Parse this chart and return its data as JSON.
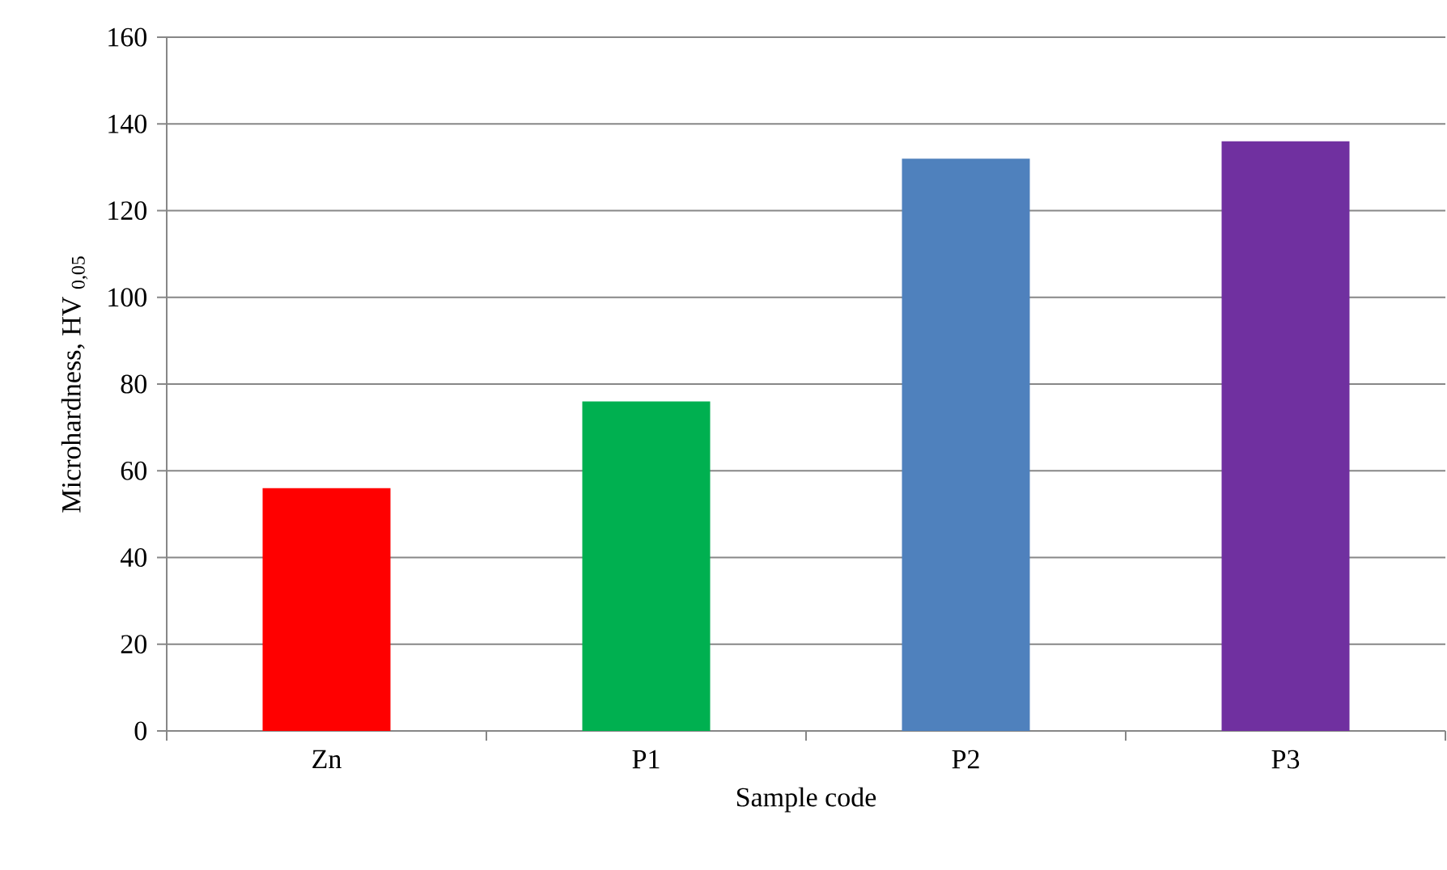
{
  "chart_data": {
    "type": "bar",
    "xlabel": "Sample code",
    "ylabel": "Microhardness, HV $_{0,05}$",
    "categories": [
      "Zn",
      "P1",
      "P2",
      "P3"
    ],
    "values": [
      56,
      76,
      132,
      136
    ],
    "colors": [
      "#ff0000",
      "#00b050",
      "#4f81bd",
      "#7030a0"
    ],
    "ylim": [
      0,
      160
    ],
    "yticks": [
      0,
      20,
      40,
      60,
      80,
      100,
      120,
      140,
      160
    ],
    "grid": "y"
  }
}
